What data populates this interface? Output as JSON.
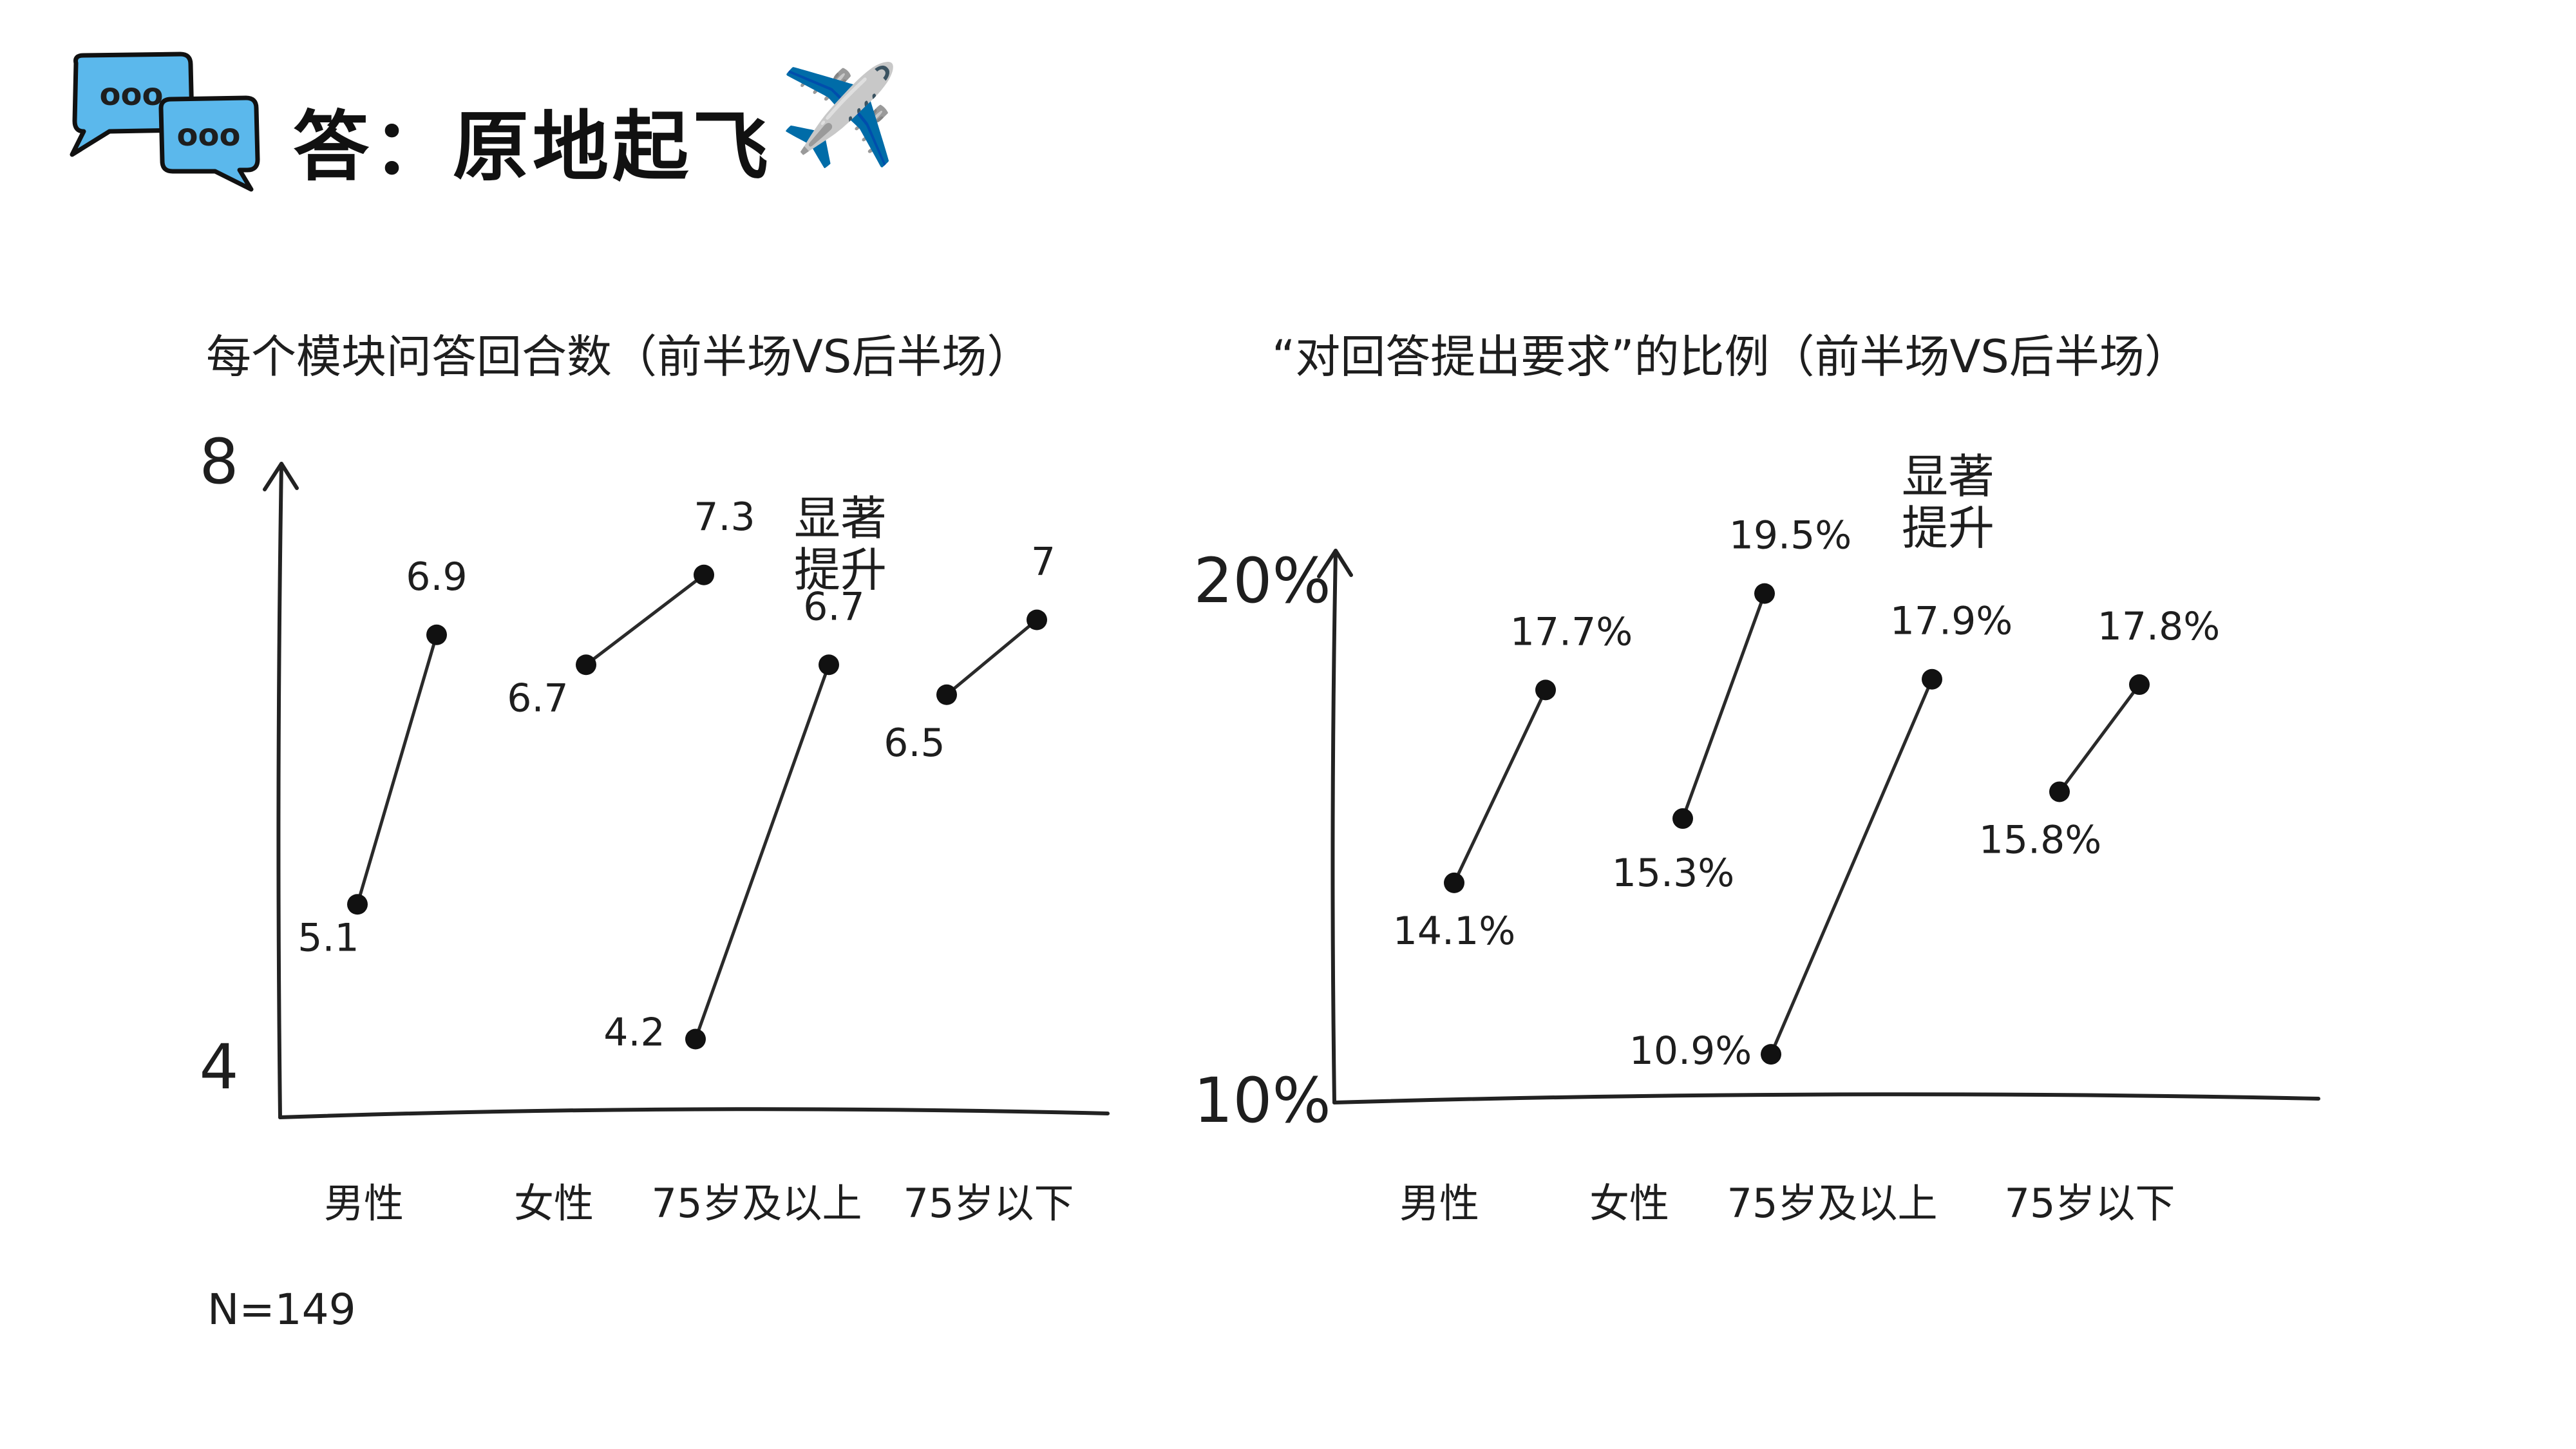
{
  "header": {
    "title": "答：原地起飞",
    "icon": "speech-bubbles-icon",
    "plane_icon": "airplane-icon",
    "plane_glyph": "✈️",
    "bubble_color": "#5bb8ec",
    "bubble_dots": "ooo"
  },
  "note": "N=149",
  "chart_data": [
    {
      "type": "line",
      "title": "每个模块问答回合数（前半场VS后半场）",
      "ylim": [
        4,
        8
      ],
      "y_tick_labels": [
        "4",
        "8"
      ],
      "categories": [
        "男性",
        "女性",
        "75岁及以上",
        "75岁以下"
      ],
      "pairs": [
        {
          "category": "男性",
          "first_half": 5.1,
          "second_half": 6.9,
          "label_first": "5.1",
          "label_second": "6.9"
        },
        {
          "category": "女性",
          "first_half": 6.7,
          "second_half": 7.3,
          "label_first": "6.7",
          "label_second": "7.3"
        },
        {
          "category": "75岁及以上",
          "first_half": 4.2,
          "second_half": 6.7,
          "label_first": "4.2",
          "label_second": "6.7"
        },
        {
          "category": "75岁以下",
          "first_half": 6.5,
          "second_half": 7,
          "label_first": "6.5",
          "label_second": "7"
        }
      ],
      "annotation": {
        "category": "75岁及以上",
        "lines": [
          "显著",
          "提升"
        ]
      },
      "grid": false
    },
    {
      "type": "line",
      "title": "“对回答提出要求”的比例（前半场VS后半场）",
      "ylim": [
        10,
        20
      ],
      "y_tick_labels": [
        "10%",
        "20%"
      ],
      "categories": [
        "男性",
        "女性",
        "75岁及以上",
        "75岁以下"
      ],
      "pairs": [
        {
          "category": "男性",
          "first_half": 14.1,
          "second_half": 17.7,
          "label_first": "14.1%",
          "label_second": "17.7%"
        },
        {
          "category": "女性",
          "first_half": 15.3,
          "second_half": 19.5,
          "label_first": "15.3%",
          "label_second": "19.5%"
        },
        {
          "category": "75岁及以上",
          "first_half": 10.9,
          "second_half": 17.9,
          "label_first": "10.9%",
          "label_second": "17.9%"
        },
        {
          "category": "75岁以下",
          "first_half": 15.8,
          "second_half": 17.8,
          "label_first": "15.8%",
          "label_second": "17.8%"
        }
      ],
      "annotation": {
        "category": "75岁及以上",
        "lines": [
          "显著",
          "提升"
        ]
      },
      "grid": false
    }
  ]
}
